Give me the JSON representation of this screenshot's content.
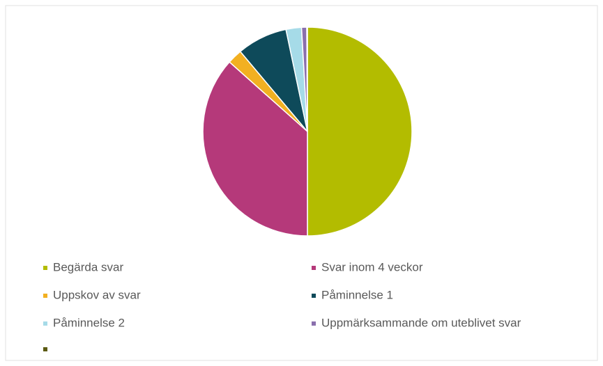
{
  "chart_data": {
    "type": "pie",
    "categories": [
      "Begärda svar",
      "Svar inom 4 veckor",
      "Uppskov av svar",
      "Påminnelse 1",
      "Påminnelse 2",
      "Uppmärksammande om uteblivet svar",
      null
    ],
    "values": [
      50,
      36.6,
      2.3,
      7.8,
      2.4,
      0.8,
      0.1
    ],
    "colors": [
      "#b3bc00",
      "#b5397a",
      "#f2b021",
      "#0e4a5a",
      "#a6dbe8",
      "#8a6fad",
      "#5b5a12"
    ],
    "legend": "bottom"
  }
}
